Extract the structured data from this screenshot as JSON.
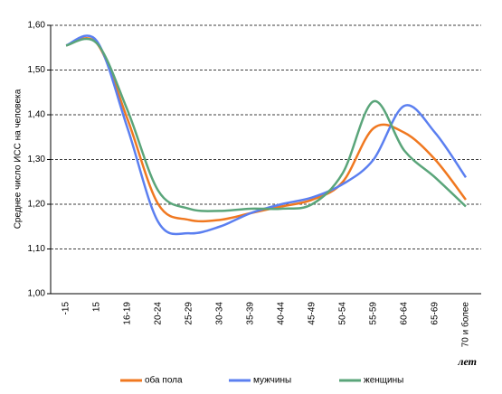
{
  "chart_data": {
    "type": "line",
    "y_label": "Среднее число ИСС на человека",
    "x_label": "лет",
    "categories": [
      "-15",
      "15",
      "16-19",
      "20-24",
      "25-29",
      "30-34",
      "35-39",
      "40-44",
      "45-49",
      "50-54",
      "55-59",
      "60-64",
      "65-69",
      "70 и более"
    ],
    "series": [
      {
        "name": "оба пола",
        "color": "#f07820",
        "values": [
          1.555,
          1.56,
          1.39,
          1.2,
          1.165,
          1.165,
          1.18,
          1.195,
          1.21,
          1.25,
          1.37,
          1.36,
          1.3,
          1.21
        ]
      },
      {
        "name": "мужчины",
        "color": "#5b7ff0",
        "values": [
          1.555,
          1.565,
          1.37,
          1.16,
          1.135,
          1.15,
          1.18,
          1.2,
          1.215,
          1.245,
          1.3,
          1.42,
          1.36,
          1.26
        ]
      },
      {
        "name": "женщины",
        "color": "#5aa57a",
        "values": [
          1.555,
          1.56,
          1.41,
          1.23,
          1.19,
          1.185,
          1.19,
          1.19,
          1.2,
          1.27,
          1.43,
          1.32,
          1.26,
          1.195
        ]
      }
    ],
    "ylim": [
      1.0,
      1.6
    ],
    "yticks": [
      {
        "value": 1.0,
        "label": "1,00"
      },
      {
        "value": 1.1,
        "label": "1,10"
      },
      {
        "value": 1.2,
        "label": "1,20"
      },
      {
        "value": 1.3,
        "label": "1,30"
      },
      {
        "value": 1.4,
        "label": "1,40"
      },
      {
        "value": 1.5,
        "label": "1,50"
      },
      {
        "value": 1.6,
        "label": "1,60"
      }
    ],
    "grid": true,
    "legend": "bottom"
  }
}
